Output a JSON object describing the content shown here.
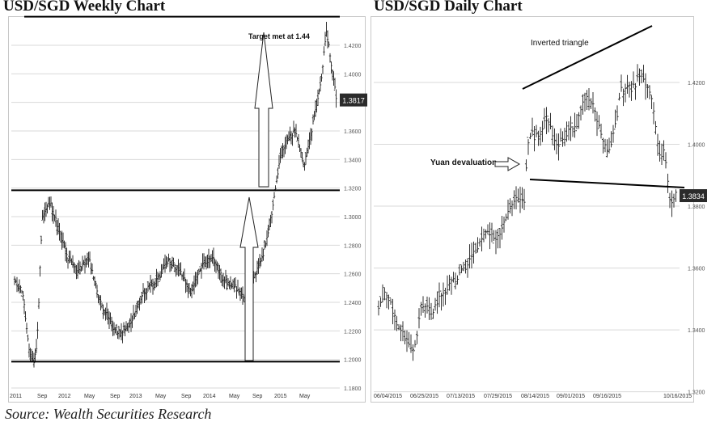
{
  "chart_data": [
    {
      "type": "candlestick",
      "title": "USD/SGD Weekly Chart",
      "ylim": [
        1.18,
        1.44
      ],
      "y_ticks": [
        "1.4200",
        "1.4000",
        "1.3800",
        "1.3600",
        "1.3400",
        "1.3200",
        "1.3000",
        "1.2800",
        "1.2600",
        "1.2400",
        "1.2200",
        "1.2000",
        "1.1800"
      ],
      "x_ticks": [
        "2011",
        "Sep",
        "2012",
        "May",
        "Sep",
        "2013",
        "May",
        "Sep",
        "2014",
        "May",
        "Sep",
        "2015",
        "May"
      ],
      "last_price": "1.3817",
      "grid": true,
      "annotations": [
        {
          "text": "Target met at 1.44"
        }
      ],
      "levels": [
        1.44,
        1.3185,
        1.1985
      ],
      "series": [
        {
          "x": "2011",
          "y": 1.2548
        },
        {
          "x": "Sep",
          "y": 1.2101
        },
        {
          "x": "2012",
          "y": 1.3026
        },
        {
          "x": "May",
          "y": 1.2622
        },
        {
          "x": "Sep",
          "y": 1.2204
        },
        {
          "x": "2013",
          "y": 1.2364
        },
        {
          "x": "May",
          "y": 1.2644
        },
        {
          "x": "Sep",
          "y": 1.2468
        },
        {
          "x": "2014",
          "y": 1.2733
        },
        {
          "x": "May",
          "y": 1.2492
        },
        {
          "x": "Sep",
          "y": 1.2643
        },
        {
          "x": "2015",
          "y": 1.3283
        },
        {
          "x": "May",
          "y": 1.3494
        },
        {
          "x": "Jul 2015",
          "y": 1.4232
        },
        {
          "x": "Sep 2015",
          "y": 1.3817
        }
      ]
    },
    {
      "type": "candlestick",
      "title": "USD/SGD Daily Chart",
      "ylim": [
        1.32,
        1.435
      ],
      "y_ticks": [
        "1.4200",
        "1.4000",
        "1.3800",
        "1.3600",
        "1.3400",
        "1.3200"
      ],
      "x_ticks": [
        "06/04/2015",
        "06/25/2015",
        "07/13/2015",
        "07/29/2015",
        "08/14/2015",
        "09/01/2015",
        "09/16/2015",
        "10/16/2015"
      ],
      "last_price": "1.3834",
      "grid": true,
      "annotations": [
        {
          "text": "Inverted triangle"
        },
        {
          "text": "Yuan devaluation"
        }
      ],
      "series": [
        {
          "x": "06/04/2015",
          "y": 1.35
        },
        {
          "x": "06/25/2015",
          "y": 1.3329
        },
        {
          "x": "07/13/2015",
          "y": 1.3589
        },
        {
          "x": "07/29/2015",
          "y": 1.3776
        },
        {
          "x": "08/14/2015",
          "y": 1.402
        },
        {
          "x": "09/01/2015",
          "y": 1.414
        },
        {
          "x": "09/16/2015",
          "y": 1.408
        },
        {
          "x": "10/01/2015",
          "y": 1.4228
        },
        {
          "x": "10/16/2015",
          "y": 1.3834
        }
      ]
    }
  ],
  "source": "Source: Wealth Securities Research",
  "colors": {
    "candle": "#333333",
    "level": "#000000",
    "grid": "#d9d9d9",
    "price_tag": "#2b2b2b"
  }
}
